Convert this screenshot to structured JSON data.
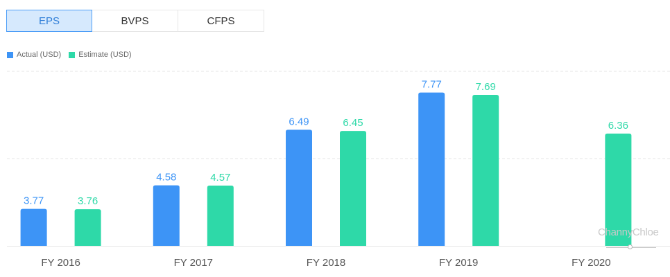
{
  "tabs": [
    {
      "label": "EPS",
      "active": true
    },
    {
      "label": "BVPS",
      "active": false
    },
    {
      "label": "CFPS",
      "active": false
    }
  ],
  "legend": [
    {
      "label": "Actual (USD)",
      "color": "#3d94f6"
    },
    {
      "label": "Estimate (USD)",
      "color": "#2ed9a8"
    }
  ],
  "watermark": "ChannyChloe",
  "chart_data": {
    "type": "bar",
    "categories": [
      "FY 2016",
      "FY 2017",
      "FY 2018",
      "FY 2019",
      "FY 2020"
    ],
    "series": [
      {
        "name": "Actual (USD)",
        "color": "#3d94f6",
        "label_color": "#3d94f6",
        "values": [
          3.77,
          4.58,
          6.49,
          7.77,
          null
        ]
      },
      {
        "name": "Estimate (USD)",
        "color": "#2ed9a8",
        "label_color": "#2ed9a8",
        "values": [
          3.76,
          4.57,
          6.45,
          7.69,
          6.36
        ]
      }
    ],
    "title": "",
    "xlabel": "",
    "ylabel": "",
    "ylim": [
      2.5,
      8.5
    ],
    "grid": true,
    "legend_position": "top-left"
  }
}
